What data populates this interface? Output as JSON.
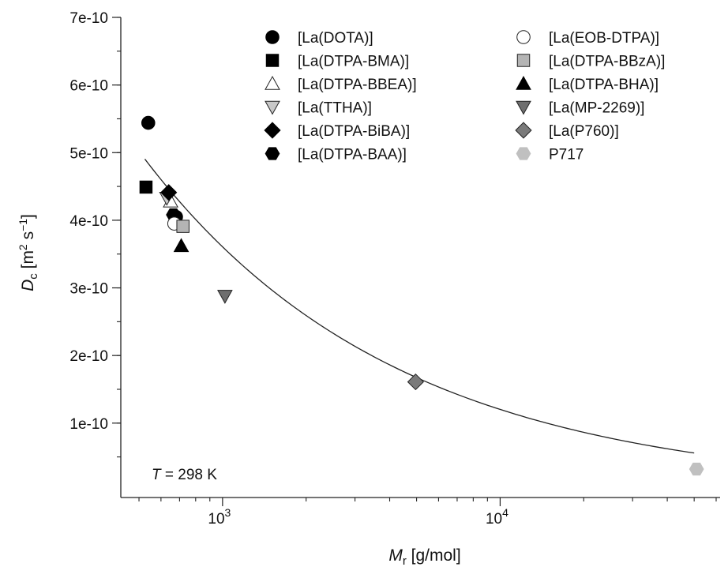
{
  "chart_data": {
    "type": "scatter",
    "x_scale": "log",
    "xlabel": {
      "main": "M",
      "sub": "r",
      "rest": " [g/mol]"
    },
    "ylabel": {
      "main": "D",
      "sub": "c",
      "rest": " [m",
      "sup1": "2",
      "mid": " s",
      "sup2": "−1",
      "end": "]"
    },
    "xlim": [
      430,
      62000
    ],
    "ylim": [
      -1e-11,
      7e-10
    ],
    "y_ticks": [
      {
        "value": 1e-10,
        "label": "1e-10"
      },
      {
        "value": 2e-10,
        "label": "2e-10"
      },
      {
        "value": 3e-10,
        "label": "3e-10"
      },
      {
        "value": 4e-10,
        "label": "4e-10"
      },
      {
        "value": 5e-10,
        "label": "5e-10"
      },
      {
        "value": 6e-10,
        "label": "6e-10"
      },
      {
        "value": 7e-10,
        "label": "7e-10"
      }
    ],
    "x_major_ticks": [
      {
        "value": 1000,
        "base": "10",
        "exp": "3"
      },
      {
        "value": 10000,
        "base": "10",
        "exp": "4"
      }
    ],
    "annotation": {
      "var": "T",
      "text": " = 298 K"
    },
    "grid": false,
    "legend_position": "top-right",
    "series": [
      {
        "name": "[La(DOTA)]",
        "marker": "circle",
        "fill": "#000000",
        "points": [
          [
            540,
            5.44e-10
          ],
          [
            680,
            4.05e-10
          ]
        ]
      },
      {
        "name": "[La(DTPA-BMA)]",
        "marker": "square",
        "fill": "#000000",
        "points": [
          [
            530,
            4.49e-10
          ]
        ]
      },
      {
        "name": "[La(DTPA-BBEA)]",
        "marker": "triangle-up",
        "fill": "#ffffff",
        "points": [
          [
            650,
            4.28e-10
          ]
        ]
      },
      {
        "name": "[La(TTHA)]",
        "marker": "triangle-down",
        "fill": "#c8c8c8",
        "points": [
          [
            630,
            4.33e-10
          ]
        ]
      },
      {
        "name": "[La(DTPA-BiBA)]",
        "marker": "diamond",
        "fill": "#000000",
        "points": [
          [
            640,
            4.41e-10
          ]
        ]
      },
      {
        "name": "[La(DTPA-BAA)]",
        "marker": "hexagon",
        "fill": "#000000",
        "points": [
          [
            665,
            4.08e-10
          ]
        ]
      },
      {
        "name": "[La(EOB-DTPA)]",
        "marker": "circle",
        "fill": "#ffffff",
        "points": [
          [
            670,
            3.95e-10
          ]
        ]
      },
      {
        "name": "[La(DTPA-BBzA)]",
        "marker": "square",
        "fill": "#b4b4b4",
        "points": [
          [
            720,
            3.91e-10
          ]
        ]
      },
      {
        "name": "[La(DTPA-BHA)]",
        "marker": "triangle-up",
        "fill": "#000000",
        "points": [
          [
            710,
            3.62e-10
          ]
        ]
      },
      {
        "name": "[La(MP-2269)]",
        "marker": "triangle-down",
        "fill": "#6e6e6e",
        "points": [
          [
            1020,
            2.88e-10
          ]
        ]
      },
      {
        "name": "[La(P760)]",
        "marker": "diamond",
        "fill": "#7a7a7a",
        "points": [
          [
            4960,
            1.61e-10
          ]
        ]
      },
      {
        "name": "P717",
        "marker": "hexagon",
        "fill": "#c0c0c0",
        "points": [
          [
            51000,
            3.2e-11
          ]
        ]
      }
    ],
    "fit_curve": {
      "a": 9.73e-09,
      "b": -0.477,
      "x_range": [
        525,
        50000
      ],
      "color": "#222222"
    }
  }
}
